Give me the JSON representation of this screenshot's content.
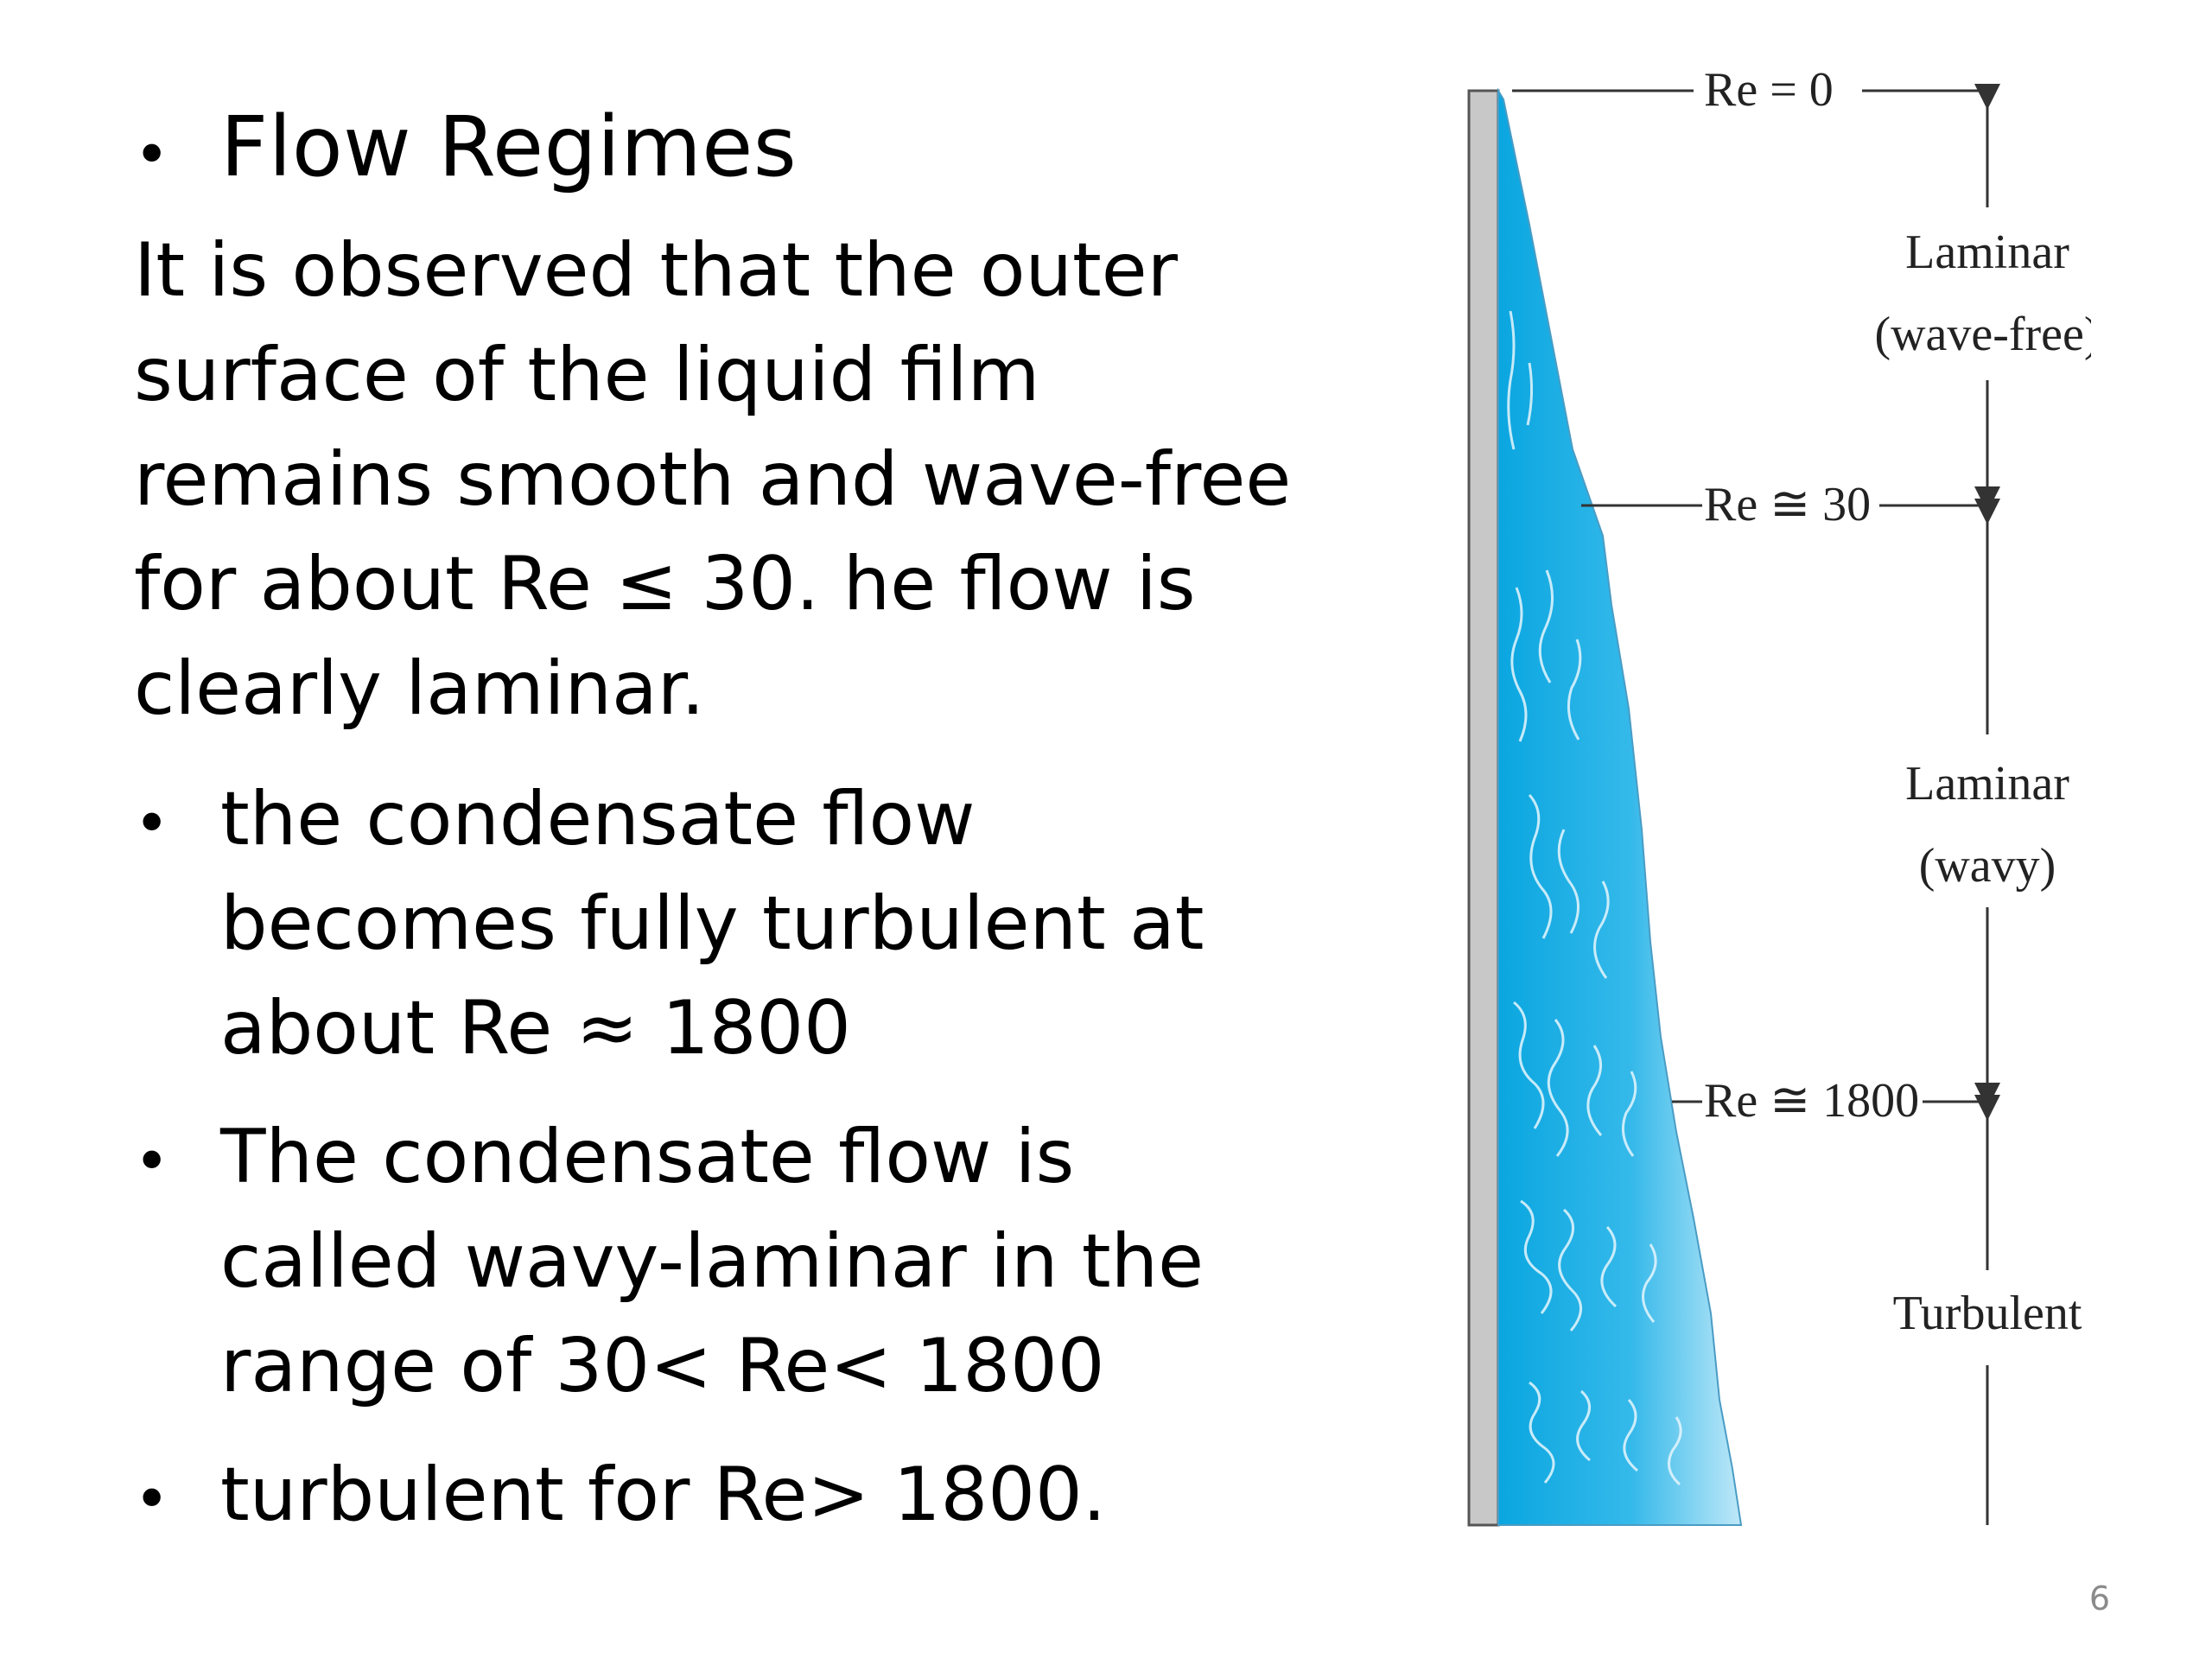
{
  "slide": {
    "heading": "Flow Regimes",
    "paragraph": "It is observed that the outer surface of the liquid film remains smooth and wave-free for about Re ≤ 30. he flow is clearly laminar.",
    "bullets": [
      "the condensate flow becomes fully turbulent at about Re ≈ 1800",
      "The condensate flow is called wavy-laminar in the range of 30< Re< 1800",
      "turbulent for Re> 1800."
    ],
    "page_number": "6"
  },
  "figure": {
    "markers": [
      {
        "label": "Re = 0"
      },
      {
        "label": "Re ≅ 30"
      },
      {
        "label": "Re ≅ 1800"
      }
    ],
    "regions": [
      {
        "line1": "Laminar",
        "line2": "(wave-free)"
      },
      {
        "line1": "Laminar",
        "line2": "(wavy)"
      },
      {
        "line1": "Turbulent",
        "line2": ""
      }
    ],
    "colors": {
      "wall": "#c8c8c8",
      "film_dark": "#0aa6e0",
      "film_light": "#bfe8f8",
      "lines": "#333333"
    }
  }
}
